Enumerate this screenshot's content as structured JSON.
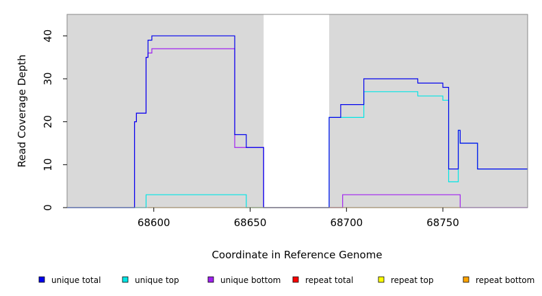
{
  "chart_data": {
    "type": "line",
    "xlabel": "Coordinate in Reference Genome",
    "ylabel": "Read Coverage Depth",
    "xlim": [
      68555,
      68794
    ],
    "ylim": [
      0,
      45
    ],
    "x_ticks": [
      68600,
      68650,
      68700,
      68750
    ],
    "x_tick_labels": [
      "68600",
      "68650",
      "68700",
      "68750"
    ],
    "y_ticks": [
      0,
      10,
      20,
      30,
      40
    ],
    "y_tick_labels": [
      "0",
      "10",
      "20",
      "30",
      "40"
    ],
    "grid": false,
    "background": "#d9d9d9",
    "shaded_regions": [
      [
        68555,
        68657
      ],
      [
        68691,
        68794
      ]
    ],
    "legend_position": "bottom",
    "series": [
      {
        "name": "unique bottom",
        "color": "#a020f0",
        "x": [
          68555,
          68590,
          68591,
          68593,
          68596,
          68597,
          68599,
          68642,
          68648,
          68657,
          68697,
          68698,
          68758,
          68759,
          68794
        ],
        "y": [
          0,
          20,
          22,
          22,
          35,
          36,
          37,
          14,
          14,
          0,
          0,
          3,
          3,
          0,
          0
        ]
      },
      {
        "name": "unique top",
        "color": "#00e5e5",
        "x": [
          68555,
          68596,
          68648,
          68691,
          68698,
          68709,
          68737,
          68750,
          68753,
          68758,
          68759,
          68768,
          68794
        ],
        "y": [
          0,
          3,
          0,
          21,
          21,
          27,
          26,
          25,
          6,
          18,
          15,
          9,
          9
        ]
      },
      {
        "name": "unique total",
        "color": "#0000ee",
        "x": [
          68555,
          68590,
          68591,
          68596,
          68597,
          68599,
          68642,
          68648,
          68657,
          68691,
          68697,
          68709,
          68737,
          68750,
          68753,
          68758,
          68759,
          68768,
          68794
        ],
        "y": [
          0,
          20,
          22,
          35,
          39,
          40,
          17,
          14,
          0,
          21,
          24,
          30,
          29,
          28,
          9,
          18,
          15,
          9,
          9
        ]
      },
      {
        "name": "repeat total",
        "color": "#ff0000",
        "x": [],
        "y": []
      },
      {
        "name": "repeat top",
        "color": "#ffff00",
        "x": [],
        "y": []
      },
      {
        "name": "repeat bottom",
        "color": "#ffa500",
        "x": [
          68597,
          68657,
          68697,
          68759
        ],
        "y": [
          0,
          0,
          0,
          0
        ]
      }
    ],
    "legend": [
      {
        "label": "unique total",
        "color": "#0000ee"
      },
      {
        "label": "unique top",
        "color": "#00e5e5"
      },
      {
        "label": "unique bottom",
        "color": "#a020f0"
      },
      {
        "label": "repeat total",
        "color": "#ff0000"
      },
      {
        "label": "repeat top",
        "color": "#ffff00"
      },
      {
        "label": "repeat bottom",
        "color": "#ffa500"
      }
    ]
  }
}
